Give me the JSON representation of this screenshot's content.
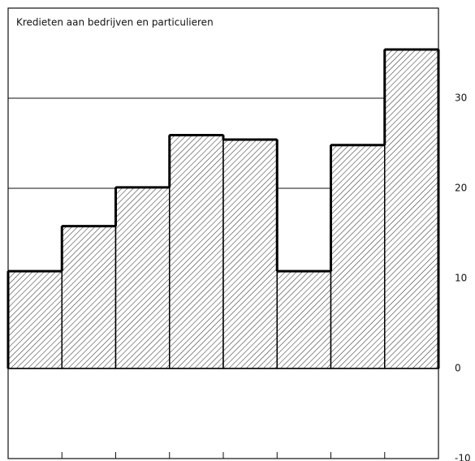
{
  "chart_data": {
    "type": "bar",
    "title": "Kredieten aan bedrijven en particulieren",
    "categories": [
      null,
      null,
      null,
      null,
      null,
      null,
      null,
      null
    ],
    "values": [
      10.8,
      15.8,
      20.1,
      25.9,
      25.4,
      10.8,
      24.8,
      35.4
    ],
    "color": "#000000",
    "ylim": [
      -10,
      40
    ],
    "yticks": [
      -10,
      0,
      10,
      20,
      30
    ],
    "grid": true
  }
}
